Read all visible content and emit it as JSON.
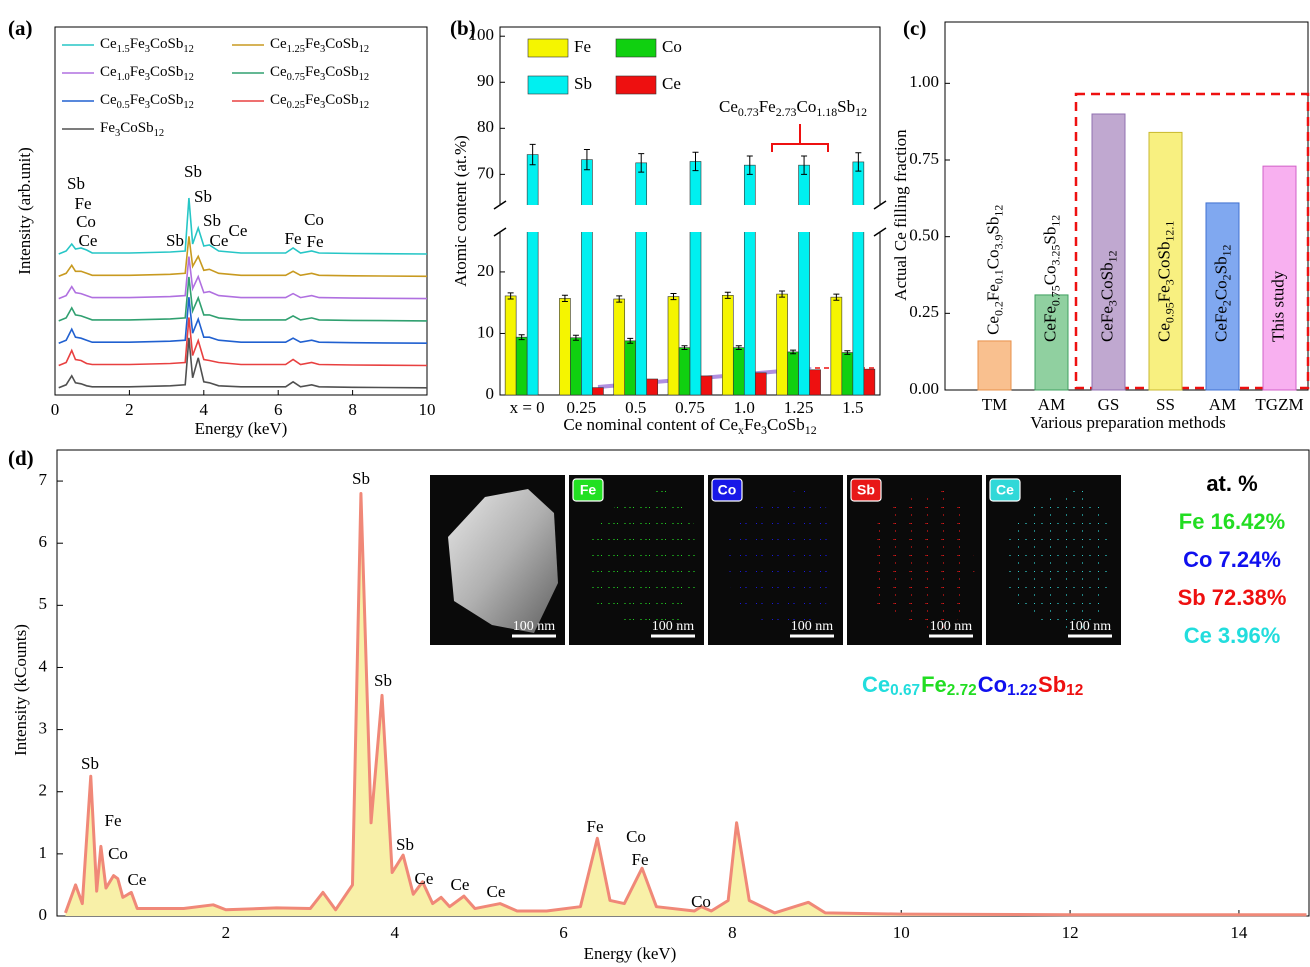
{
  "chart_data": [
    {
      "type": "spectra",
      "panel_label": "(a)",
      "xlabel": "Energy (keV)",
      "ylabel": "Intensity (arb.unit)",
      "xlim": [
        0,
        10
      ],
      "xticks": [
        0,
        2,
        4,
        6,
        8,
        10
      ],
      "x": [
        0.1,
        0.3,
        0.45,
        0.55,
        0.7,
        0.85,
        1.0,
        2.0,
        3.1,
        3.5,
        3.6,
        3.7,
        3.85,
        4.0,
        4.15,
        4.4,
        5.0,
        6.2,
        6.4,
        6.6,
        6.9,
        7.1,
        8.0,
        10
      ],
      "series": [
        {
          "name": "Ce1.5Fe3CoSb12",
          "color": "#26c6c6",
          "values": [
            0,
            0.3,
            1.0,
            0.5,
            0.6,
            0.4,
            0.1,
            0.1,
            0.2,
            0.3,
            5.6,
            1.0,
            2.6,
            0.8,
            0.9,
            0.3,
            0.1,
            0.1,
            0.6,
            0.1,
            0.3,
            0.1,
            0.05,
            0
          ]
        },
        {
          "name": "Ce1.25Fe3CoSb12",
          "color": "#c89a20",
          "values": [
            0,
            0.3,
            1.1,
            0.5,
            0.5,
            0.3,
            0.1,
            0.1,
            0.2,
            0.3,
            4.0,
            1.0,
            2.0,
            0.6,
            0.7,
            0.3,
            0.1,
            0.1,
            0.5,
            0.1,
            0.3,
            0.1,
            0.05,
            0
          ]
        },
        {
          "name": "Ce1.0Fe3CoSb12",
          "color": "#b070e0",
          "values": [
            0,
            0.3,
            1.2,
            0.6,
            0.5,
            0.3,
            0.1,
            0.1,
            0.2,
            0.3,
            4.2,
            1.0,
            2.2,
            0.6,
            0.7,
            0.3,
            0.1,
            0.1,
            0.5,
            0.1,
            0.3,
            0.1,
            0.05,
            0
          ]
        },
        {
          "name": "Ce0.75Fe3CoSb12",
          "color": "#30a070",
          "values": [
            0,
            0.3,
            1.3,
            0.6,
            0.5,
            0.3,
            0.1,
            0.1,
            0.2,
            0.3,
            4.4,
            1.0,
            2.3,
            0.6,
            0.6,
            0.3,
            0.1,
            0.1,
            0.5,
            0.1,
            0.3,
            0.1,
            0.05,
            0
          ]
        },
        {
          "name": "Ce0.5Fe3CoSb12",
          "color": "#2060d0",
          "values": [
            0,
            0.3,
            1.4,
            0.6,
            0.5,
            0.3,
            0.1,
            0.1,
            0.2,
            0.3,
            4.6,
            1.0,
            2.4,
            0.6,
            0.6,
            0.3,
            0.1,
            0.1,
            0.5,
            0.1,
            0.3,
            0.1,
            0.05,
            0
          ]
        },
        {
          "name": "Ce0.25Fe3CoSb12",
          "color": "#e84040",
          "values": [
            0,
            0.3,
            1.5,
            0.6,
            0.5,
            0.2,
            0.1,
            0.1,
            0.2,
            0.3,
            4.8,
            1.0,
            2.5,
            0.6,
            0.5,
            0.3,
            0.1,
            0.1,
            0.6,
            0.1,
            0.3,
            0.1,
            0.05,
            0
          ]
        },
        {
          "name": "Fe3CoSb12",
          "color": "#505050",
          "values": [
            0,
            0.3,
            1.2,
            0.5,
            0.4,
            0.2,
            0.1,
            0.1,
            0.2,
            0.3,
            5.0,
            1.0,
            3.0,
            0.6,
            0.5,
            0.2,
            0.1,
            0.1,
            0.6,
            0.1,
            0.3,
            0.1,
            0.05,
            0
          ]
        }
      ],
      "annotations": [
        "Sb",
        "Fe",
        "Co",
        "Ce",
        "Sb",
        "Sb",
        "Sb",
        "Sb",
        "Ce",
        "Ce",
        "Fe",
        "Co",
        "Fe"
      ]
    },
    {
      "type": "bar",
      "panel_label": "(b)",
      "xlabel": "Ce nominal content of CexFe3CoSb12",
      "ylabel": "Atomic content (at.%)",
      "categories": [
        "x = 0",
        "0.25",
        "0.5",
        "0.75",
        "1.0",
        "1.25",
        "1.5"
      ],
      "series": [
        {
          "name": "Fe",
          "color": "#f5f500",
          "values": [
            16.1,
            15.7,
            15.6,
            16.0,
            16.2,
            16.4,
            15.9
          ],
          "errors": [
            0.5,
            0.5,
            0.5,
            0.5,
            0.5,
            0.5,
            0.5
          ]
        },
        {
          "name": "Co",
          "color": "#10d010",
          "values": [
            9.4,
            9.3,
            8.8,
            7.7,
            7.7,
            7.0,
            6.9
          ],
          "errors": [
            0.4,
            0.4,
            0.4,
            0.3,
            0.3,
            0.3,
            0.3
          ]
        },
        {
          "name": "Sb",
          "color": "#00f0f0",
          "values": [
            74.3,
            73.2,
            72.5,
            72.8,
            72.0,
            72.0,
            72.7
          ],
          "errors": [
            2.2,
            2.2,
            2.0,
            2.0,
            2.0,
            2.0,
            2.0
          ]
        },
        {
          "name": "Ce",
          "color": "#ee1010",
          "values": [
            null,
            1.2,
            2.6,
            3.1,
            3.6,
            4.1,
            4.2
          ]
        }
      ],
      "ylim": [
        0,
        102
      ],
      "ybreak": [
        26,
        64
      ],
      "yticks": [
        0,
        10,
        20,
        70,
        80,
        90,
        100
      ],
      "annotation": "Ce0.73Fe2.73Co1.18Sb12"
    },
    {
      "type": "bar",
      "panel_label": "(c)",
      "xlabel": "Various preparation methods",
      "ylabel": "Actual Ce filling fraction",
      "categories": [
        "TM",
        "AM",
        "GS",
        "SS",
        "AM",
        "TGZM"
      ],
      "values": [
        0.16,
        0.31,
        0.9,
        0.84,
        0.61,
        0.73
      ],
      "bar_labels": [
        "Ce0.2Fe0.1Co3.9Sb12",
        "CeFe0.75Co3.25Sb12",
        "CeFe3CoSb12",
        "Ce0.95Fe3CoSb12.1",
        "CeFe2Co2Sb12",
        "This study"
      ],
      "colors": [
        "#f9c08f",
        "#90d0a0",
        "#c0a8d0",
        "#f8f080",
        "#80a8f0",
        "#f8b0f0"
      ],
      "edgecolors": [
        "#e8904a",
        "#40a060",
        "#9070b0",
        "#c8b830",
        "#4070d0",
        "#d060c8"
      ],
      "ylim": [
        0,
        1.2
      ],
      "yticks": [
        {
          "value": 0,
          "label": "0.00"
        },
        {
          "value": 0.25,
          "label": "0.25"
        },
        {
          "value": 0.5,
          "label": "0.50"
        },
        {
          "value": 0.75,
          "label": "0.75"
        },
        {
          "value": 1,
          "label": "1.00"
        }
      ]
    },
    {
      "type": "area",
      "panel_label": "(d)",
      "xlabel": "Energy (keV)",
      "ylabel": "Intensity (kCounts)",
      "xlim": [
        0,
        14.83
      ],
      "xticks": [
        2,
        4,
        6,
        8,
        10,
        12,
        14
      ],
      "ylim": [
        0,
        7.5
      ],
      "yticks": [
        0,
        1,
        2,
        3,
        4,
        5,
        6,
        7
      ],
      "color": "#f08878",
      "fill_color": "#f8f0a8",
      "x": [
        0.1,
        0.22,
        0.3,
        0.4,
        0.47,
        0.52,
        0.58,
        0.67,
        0.72,
        0.78,
        0.88,
        0.95,
        1.5,
        1.85,
        2.0,
        2.6,
        3.0,
        3.15,
        3.3,
        3.5,
        3.6,
        3.72,
        3.85,
        3.97,
        4.1,
        4.22,
        4.33,
        4.45,
        4.55,
        4.65,
        4.82,
        4.95,
        5.25,
        5.45,
        5.8,
        6.2,
        6.4,
        6.55,
        6.72,
        6.93,
        7.1,
        7.55,
        7.63,
        7.75,
        7.95,
        8.05,
        8.2,
        8.5,
        8.9,
        9.1,
        10,
        12,
        14.8
      ],
      "values": [
        0.05,
        0.5,
        0.2,
        2.25,
        0.4,
        1.12,
        0.45,
        0.65,
        0.6,
        0.3,
        0.38,
        0.12,
        0.12,
        0.18,
        0.1,
        0.13,
        0.12,
        0.38,
        0.1,
        0.5,
        6.8,
        1.5,
        3.55,
        0.7,
        0.98,
        0.35,
        0.55,
        0.2,
        0.3,
        0.15,
        0.32,
        0.12,
        0.2,
        0.08,
        0.08,
        0.15,
        1.25,
        0.25,
        0.2,
        0.77,
        0.15,
        0.08,
        0.15,
        0.08,
        0.25,
        1.5,
        0.25,
        0.05,
        0.22,
        0.05,
        0.03,
        0.02,
        0.02
      ],
      "annotations": [
        "Sb",
        "Fe",
        "Co",
        "Ce",
        "Sb",
        "Sb",
        "Sb",
        "Ce",
        "Ce",
        "Ce",
        "Fe",
        "Co",
        "Fe",
        "Co"
      ],
      "images": [
        {
          "scale_bar": "100 nm"
        },
        {
          "label": "Fe",
          "color": "#22e022",
          "scale_bar": "100 nm"
        },
        {
          "label": "Co",
          "color": "#1818e8",
          "scale_bar": "100 nm"
        },
        {
          "label": "Sb",
          "color": "#e81818",
          "scale_bar": "100 nm"
        },
        {
          "label": "Ce",
          "color": "#30d8d8",
          "scale_bar": "100 nm"
        }
      ],
      "composition": {
        "title": "at. %",
        "items": [
          {
            "text": "Fe 16.42%",
            "color": "#22dd22"
          },
          {
            "text": "Co 7.24%",
            "color": "#1010ee"
          },
          {
            "text": "Sb 72.38%",
            "color": "#ee1010"
          },
          {
            "text": "Ce 3.96%",
            "color": "#22dddd"
          }
        ]
      },
      "formula_parts": [
        {
          "text": "Ce0.67",
          "color": "#22dddd"
        },
        {
          "text": "Fe2.72",
          "color": "#22dd22"
        },
        {
          "text": "Co1.22",
          "color": "#1010ee"
        },
        {
          "text": "Sb12",
          "color": "#ee1010"
        }
      ]
    }
  ]
}
